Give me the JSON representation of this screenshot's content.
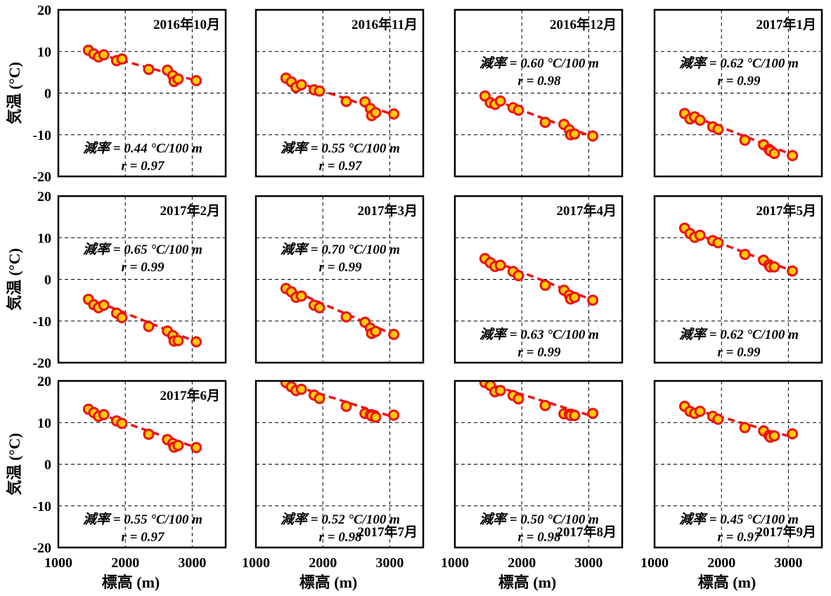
{
  "figure": {
    "ylabel": "気温 (°C)",
    "xlabel": "標高 (m)",
    "xlim": [
      1000,
      3500
    ],
    "ylim": [
      -20,
      20
    ],
    "xticks": [
      1000,
      2000,
      3000
    ],
    "yticks": [
      -20,
      -10,
      0,
      10,
      20
    ],
    "xgrid": [
      2000,
      3000
    ],
    "ygrid": [
      -10,
      0,
      10
    ],
    "marker_fill": "#ffcc00",
    "marker_edge": "#ee1111",
    "trend_color": "#ee1111"
  },
  "chart_data": [
    {
      "type": "scatter",
      "title": "2016年10月",
      "title_pos": "top-right",
      "annotation": {
        "rate": "減率 = 0.44 °C/100 m",
        "r": "r = 0.97",
        "pos": "bottom"
      },
      "x": [
        1450,
        1530,
        1600,
        1680,
        1870,
        1950,
        2350,
        2630,
        2710,
        2730,
        2790,
        3060
      ],
      "y": [
        10.3,
        9.4,
        8.7,
        9.2,
        7.8,
        8.2,
        5.7,
        5.5,
        4.2,
        2.8,
        3.4,
        3.0
      ],
      "trend": {
        "x": [
          1450,
          3060
        ],
        "y": [
          10.0,
          3.0
        ]
      }
    },
    {
      "type": "scatter",
      "title": "2016年11月",
      "title_pos": "top-right",
      "annotation": {
        "rate": "減率 = 0.55 °C/100 m",
        "r": "r = 0.97",
        "pos": "bottom"
      },
      "x": [
        1450,
        1530,
        1600,
        1680,
        1870,
        1950,
        2350,
        2630,
        2710,
        2730,
        2790,
        3060
      ],
      "y": [
        3.6,
        2.7,
        1.4,
        2.0,
        0.8,
        0.5,
        -2.0,
        -2.1,
        -3.7,
        -5.4,
        -4.7,
        -5.0
      ],
      "trend": {
        "x": [
          1450,
          3060
        ],
        "y": [
          3.5,
          -5.2
        ]
      }
    },
    {
      "type": "scatter",
      "title": "2016年12月",
      "title_pos": "top-right",
      "annotation": {
        "rate": "減率 = 0.60 °C/100 m",
        "r": "r = 0.98",
        "pos": "top"
      },
      "x": [
        1450,
        1530,
        1600,
        1680,
        1870,
        1950,
        2350,
        2630,
        2710,
        2730,
        2790,
        3060
      ],
      "y": [
        -0.7,
        -2.3,
        -2.7,
        -1.9,
        -3.5,
        -4.1,
        -7.0,
        -7.5,
        -8.8,
        -10.0,
        -9.8,
        -10.3
      ],
      "trend": {
        "x": [
          1450,
          3060
        ],
        "y": [
          -0.8,
          -10.5
        ]
      }
    },
    {
      "type": "scatter",
      "title": "2017年1月",
      "title_pos": "top-right",
      "annotation": {
        "rate": "減率 = 0.62 °C/100 m",
        "r": "r = 0.99",
        "pos": "top"
      },
      "x": [
        1450,
        1530,
        1600,
        1680,
        1870,
        1950,
        2350,
        2630,
        2710,
        2730,
        2790,
        3060
      ],
      "y": [
        -4.9,
        -6.2,
        -5.7,
        -6.5,
        -8.1,
        -8.7,
        -11.3,
        -12.4,
        -13.5,
        -13.9,
        -14.5,
        -15.0
      ],
      "trend": {
        "x": [
          1450,
          3060
        ],
        "y": [
          -4.8,
          -14.8
        ]
      }
    },
    {
      "type": "scatter",
      "title": "2017年2月",
      "title_pos": "top-right",
      "annotation": {
        "rate": "減率 = 0.65 °C/100 m",
        "r": "r = 0.99",
        "pos": "top"
      },
      "x": [
        1450,
        1530,
        1600,
        1680,
        1870,
        1950,
        2350,
        2630,
        2710,
        2730,
        2790,
        3060
      ],
      "y": [
        -4.8,
        -6.1,
        -6.8,
        -6.2,
        -8.1,
        -9.2,
        -11.3,
        -12.4,
        -13.5,
        -14.8,
        -14.7,
        -15.0
      ],
      "trend": {
        "x": [
          1450,
          3060
        ],
        "y": [
          -4.5,
          -15.0
        ]
      }
    },
    {
      "type": "scatter",
      "title": "2017年3月",
      "title_pos": "top-right",
      "annotation": {
        "rate": "減率 = 0.70 °C/100 m",
        "r": "r = 0.99",
        "pos": "top"
      },
      "x": [
        1450,
        1530,
        1600,
        1680,
        1870,
        1950,
        2350,
        2630,
        2710,
        2730,
        2790,
        3060
      ],
      "y": [
        -2.2,
        -3.0,
        -4.3,
        -4.0,
        -6.2,
        -6.8,
        -9.0,
        -10.3,
        -11.7,
        -13.0,
        -12.5,
        -13.2
      ],
      "trend": {
        "x": [
          1450,
          3060
        ],
        "y": [
          -2.0,
          -13.3
        ]
      }
    },
    {
      "type": "scatter",
      "title": "2017年4月",
      "title_pos": "top-right",
      "annotation": {
        "rate": "減率 = 0.63 °C/100 m",
        "r": "r = 0.99",
        "pos": "bottom"
      },
      "x": [
        1450,
        1530,
        1600,
        1680,
        1870,
        1950,
        2350,
        2630,
        2710,
        2730,
        2790,
        3060
      ],
      "y": [
        5.0,
        4.0,
        3.1,
        3.4,
        1.9,
        0.9,
        -1.4,
        -2.6,
        -3.8,
        -4.7,
        -4.3,
        -5.0
      ],
      "trend": {
        "x": [
          1450,
          3060
        ],
        "y": [
          5.2,
          -5.0
        ]
      }
    },
    {
      "type": "scatter",
      "title": "2017年5月",
      "title_pos": "top-right",
      "annotation": {
        "rate": "減率 = 0.62 °C/100 m",
        "r": "r = 0.99",
        "pos": "bottom"
      },
      "x": [
        1450,
        1530,
        1600,
        1680,
        1870,
        1950,
        2350,
        2630,
        2710,
        2730,
        2790,
        3060
      ],
      "y": [
        12.3,
        11.0,
        10.1,
        10.6,
        9.3,
        8.8,
        6.0,
        4.6,
        3.5,
        3.0,
        3.0,
        2.0
      ],
      "trend": {
        "x": [
          1450,
          3060
        ],
        "y": [
          12.0,
          2.0
        ]
      }
    },
    {
      "type": "scatter",
      "title": "2017年6月",
      "title_pos": "top-right",
      "annotation": {
        "rate": "減率 = 0.55 °C/100 m",
        "r": "r = 0.97",
        "pos": "bottom"
      },
      "x": [
        1450,
        1530,
        1600,
        1680,
        1870,
        1950,
        2350,
        2630,
        2710,
        2730,
        2790,
        3060
      ],
      "y": [
        13.2,
        12.4,
        11.5,
        11.9,
        10.4,
        9.8,
        7.2,
        5.9,
        5.0,
        4.1,
        4.5,
        4.0
      ],
      "trend": {
        "x": [
          1450,
          3060
        ],
        "y": [
          13.0,
          4.0
        ]
      }
    },
    {
      "type": "scatter",
      "title": "2017年7月",
      "title_pos": "bottom-right",
      "annotation": {
        "rate": "減率 = 0.52 °C/100 m",
        "r": "r = 0.98",
        "pos": "bottom"
      },
      "x": [
        1450,
        1530,
        1600,
        1680,
        1870,
        1950,
        2350,
        2630,
        2710,
        2730,
        2790,
        3060
      ],
      "y": [
        19.6,
        18.6,
        17.7,
        18.0,
        16.6,
        15.8,
        13.9,
        12.2,
        11.9,
        11.6,
        11.3,
        11.8
      ],
      "trend": {
        "x": [
          1450,
          3060
        ],
        "y": [
          19.5,
          11.3
        ]
      }
    },
    {
      "type": "scatter",
      "title": "2017年8月",
      "title_pos": "bottom-right",
      "annotation": {
        "rate": "減率 = 0.50 °C/100 m",
        "r": "r = 0.98",
        "pos": "bottom"
      },
      "x": [
        1450,
        1530,
        1600,
        1680,
        1870,
        1950,
        2350,
        2630,
        2710,
        2730,
        2790,
        3060
      ],
      "y": [
        19.6,
        18.9,
        17.4,
        17.7,
        16.5,
        15.7,
        14.1,
        12.1,
        12.0,
        11.7,
        11.7,
        12.2
      ],
      "trend": {
        "x": [
          1450,
          3060
        ],
        "y": [
          19.5,
          11.5
        ]
      }
    },
    {
      "type": "scatter",
      "title": "2017年9月",
      "title_pos": "bottom-right",
      "annotation": {
        "rate": "減率 = 0.45 °C/100 m",
        "r": "r = 0.97",
        "pos": "bottom"
      },
      "x": [
        1450,
        1530,
        1600,
        1680,
        1870,
        1950,
        2350,
        2630,
        2710,
        2730,
        2790,
        3060
      ],
      "y": [
        13.9,
        12.7,
        12.2,
        12.7,
        11.5,
        10.8,
        8.8,
        8.0,
        6.9,
        6.5,
        6.8,
        7.3
      ],
      "trend": {
        "x": [
          1450,
          3060
        ],
        "y": [
          13.8,
          6.5
        ]
      }
    }
  ]
}
